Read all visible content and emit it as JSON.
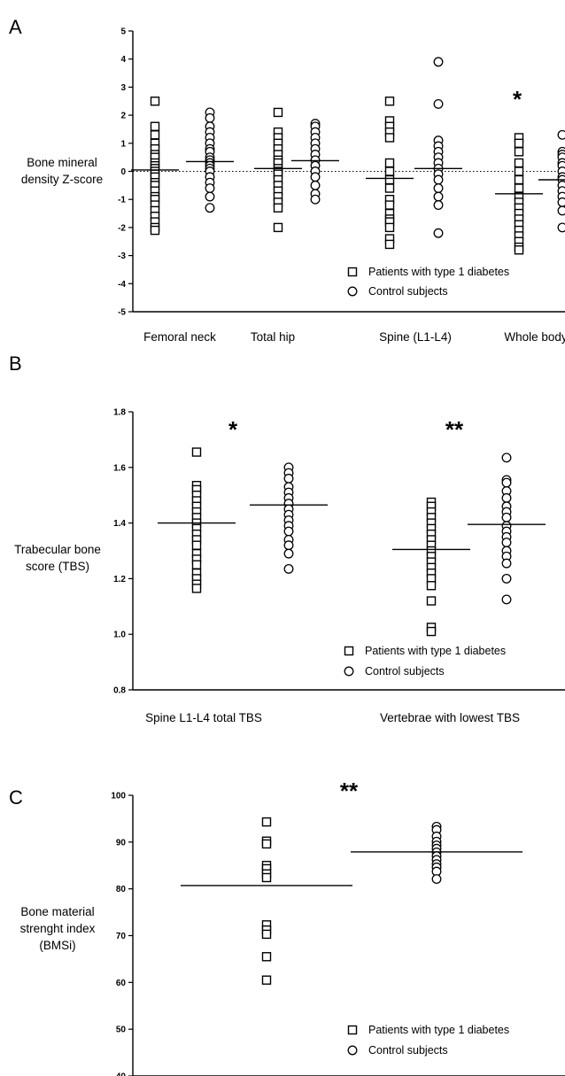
{
  "chart_data": [
    {
      "type": "scatter",
      "panel_label": "A",
      "ylabel": [
        "Bone mineral",
        "density Z-score"
      ],
      "ylim": [
        -5,
        5
      ],
      "yticks": [
        5,
        4,
        3,
        2,
        1,
        0,
        -1,
        -2,
        -3,
        -4,
        -5
      ],
      "reference_line": 0,
      "categories": [
        "Femoral neck",
        "Total hip",
        "Spine (L1-L4)",
        "Whole body"
      ],
      "significance": [
        "",
        "",
        "",
        "*"
      ],
      "legend": {
        "placement": "bottom-right",
        "entries": [
          "Patients with type 1 diabetes",
          "Control subjects"
        ]
      },
      "series": [
        {
          "name": "Patients with type 1 diabetes",
          "marker": "square",
          "means": [
            0.05,
            0.1,
            -0.25,
            -0.8
          ],
          "points": [
            [
              2.5,
              1.6,
              1.3,
              1.0,
              0.8,
              0.6,
              0.5,
              0.3,
              0.2,
              0.1,
              0.0,
              -0.1,
              -0.2,
              -0.4,
              -0.5,
              -0.7,
              -0.9,
              -1.0,
              -1.2,
              -1.4,
              -1.6,
              -1.8,
              -2.0,
              -2.1
            ],
            [
              2.1,
              1.4,
              1.2,
              1.0,
              0.8,
              0.6,
              0.4,
              0.3,
              0.1,
              0.0,
              -0.1,
              -0.3,
              -0.5,
              -0.7,
              -0.9,
              -1.1,
              -1.3,
              -2.0
            ],
            [
              2.5,
              1.8,
              1.6,
              1.4,
              1.2,
              0.3,
              0.0,
              -0.3,
              -0.6,
              -1.0,
              -1.2,
              -1.5,
              -1.7,
              -1.8,
              -2.0,
              -2.4,
              -2.6
            ],
            [
              1.2,
              1.0,
              0.7,
              0.3,
              0.0,
              -0.3,
              -0.6,
              -0.9,
              -1.1,
              -1.3,
              -1.5,
              -1.7,
              -1.9,
              -2.1,
              -2.3,
              -2.5,
              -2.7,
              -2.8
            ]
          ]
        },
        {
          "name": "Control subjects",
          "marker": "circle",
          "means": [
            0.35,
            0.38,
            0.1,
            -0.3
          ],
          "points": [
            [
              2.1,
              1.9,
              1.6,
              1.4,
              1.2,
              1.0,
              0.8,
              0.7,
              0.5,
              0.4,
              0.3,
              0.2,
              0.1,
              0.0,
              -0.2,
              -0.4,
              -0.6,
              -0.9,
              -1.3
            ],
            [
              1.7,
              1.6,
              1.4,
              1.2,
              1.0,
              0.8,
              0.6,
              0.4,
              0.2,
              0.0,
              -0.2,
              -0.5,
              -0.8,
              -1.0
            ],
            [
              3.9,
              2.4,
              1.1,
              0.9,
              0.7,
              0.5,
              0.3,
              0.1,
              -0.1,
              -0.3,
              -0.6,
              -0.9,
              -1.2,
              -2.2
            ],
            [
              1.3,
              0.7,
              0.6,
              0.5,
              0.3,
              0.2,
              0.0,
              -0.2,
              -0.3,
              -0.5,
              -0.7,
              -0.9,
              -1.1,
              -1.4,
              -2.0
            ]
          ]
        }
      ]
    },
    {
      "type": "scatter",
      "panel_label": "B",
      "ylabel": [
        "Trabecular bone",
        "score (TBS)"
      ],
      "ylim": [
        0.8,
        1.8
      ],
      "yticks": [
        1.8,
        1.6,
        1.4,
        1.2,
        1.0,
        0.8
      ],
      "categories": [
        "Spine L1-L4 total TBS",
        "Vertebrae with lowest TBS"
      ],
      "significance": [
        "*",
        "**"
      ],
      "legend": {
        "placement": "bottom-right",
        "entries": [
          "Patients with type 1 diabetes",
          "Control subjects"
        ]
      },
      "series": [
        {
          "name": "Patients with type 1 diabetes",
          "marker": "square",
          "means": [
            1.4,
            1.305
          ],
          "points": [
            [
              1.655,
              1.535,
              1.52,
              1.5,
              1.48,
              1.46,
              1.44,
              1.42,
              1.4,
              1.38,
              1.36,
              1.34,
              1.32,
              1.29,
              1.27,
              1.25,
              1.22,
              1.2,
              1.18,
              1.165
            ],
            [
              1.475,
              1.46,
              1.44,
              1.42,
              1.4,
              1.38,
              1.36,
              1.34,
              1.32,
              1.3,
              1.28,
              1.26,
              1.24,
              1.22,
              1.2,
              1.175,
              1.12,
              1.025,
              1.01
            ]
          ]
        },
        {
          "name": "Control subjects",
          "marker": "circle",
          "means": [
            1.465,
            1.395
          ],
          "points": [
            [
              1.6,
              1.58,
              1.56,
              1.53,
              1.51,
              1.49,
              1.47,
              1.45,
              1.43,
              1.41,
              1.39,
              1.37,
              1.34,
              1.32,
              1.29,
              1.235
            ],
            [
              1.635,
              1.555,
              1.545,
              1.515,
              1.49,
              1.46,
              1.44,
              1.42,
              1.39,
              1.37,
              1.35,
              1.33,
              1.3,
              1.28,
              1.255,
              1.2,
              1.125
            ]
          ]
        }
      ]
    },
    {
      "type": "scatter",
      "panel_label": "C",
      "ylabel": [
        "Bone material",
        "strenght index",
        "(BMSi)"
      ],
      "ylim": [
        40,
        100
      ],
      "yticks": [
        100,
        90,
        80,
        70,
        60,
        50,
        40
      ],
      "categories": [],
      "significance": [
        "**"
      ],
      "legend": {
        "placement": "bottom-right",
        "entries": [
          "Patients with type 1 diabetes",
          "Control subjects"
        ]
      },
      "series": [
        {
          "name": "Patients with type 1 diabetes",
          "marker": "square",
          "means": [
            80.7
          ],
          "points": [
            [
              94.3,
              90.2,
              89.6,
              85.0,
              84.3,
              83.2,
              82.4,
              72.3,
              71.2,
              70.3,
              65.5,
              60.5
            ]
          ]
        },
        {
          "name": "Control subjects",
          "marker": "circle",
          "means": [
            87.9
          ],
          "points": [
            [
              93.3,
              92.6,
              91.2,
              90.1,
              89.3,
              88.6,
              87.8,
              87.0,
              86.2,
              85.3,
              84.6,
              83.7,
              82.1
            ]
          ]
        }
      ]
    }
  ]
}
